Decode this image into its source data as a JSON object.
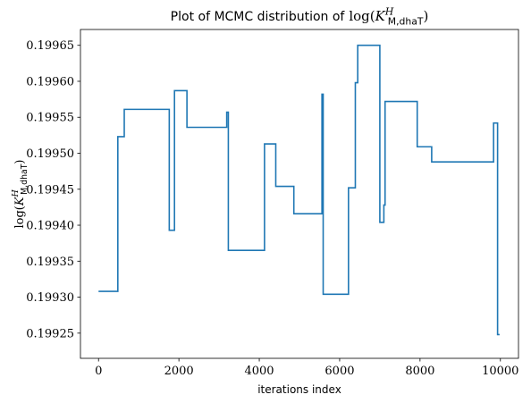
{
  "chart_data": {
    "type": "line",
    "title_prefix": "Plot of MCMC distribution of",
    "title_math": {
      "fn": "log",
      "var": "K",
      "sup": "H",
      "sub": "M,dhaT"
    },
    "xlabel": "iterations index",
    "ylabel_math": {
      "fn": "log",
      "var": "K",
      "sup": "H",
      "sub": "M,dhaT"
    },
    "xlim": [
      -450,
      10450
    ],
    "ylim": [
      0.199215,
      0.199672
    ],
    "xticks": [
      0,
      2000,
      4000,
      6000,
      8000,
      10000
    ],
    "yticks": [
      0.19925,
      0.1993,
      0.19935,
      0.1994,
      0.19945,
      0.1995,
      0.19955,
      0.1996,
      0.19965
    ],
    "ytick_labels": [
      "0.19925",
      "0.19930",
      "0.19935",
      "0.19940",
      "0.19945",
      "0.19950",
      "0.19955",
      "0.19960",
      "0.19965"
    ],
    "grid": false,
    "series": [
      {
        "color": "#1f77b4",
        "step": true,
        "x": [
          0,
          480,
          640,
          1760,
          1890,
          2200,
          3190,
          3230,
          4090,
          4130,
          4410,
          4860,
          5560,
          5590,
          6220,
          6390,
          6450,
          7000,
          7100,
          7130,
          7150,
          7930,
          8290,
          9830,
          9930,
          9980
        ],
        "y": [
          0.199308,
          0.199523,
          0.199561,
          0.199393,
          0.199587,
          0.199536,
          0.199557,
          0.199365,
          0.199365,
          0.199513,
          0.199454,
          0.199416,
          0.199582,
          0.199304,
          0.199452,
          0.199598,
          0.19965,
          0.199404,
          0.199428,
          0.199572,
          0.199572,
          0.199509,
          0.199488,
          0.199542,
          0.199248,
          0.199248
        ]
      }
    ]
  }
}
